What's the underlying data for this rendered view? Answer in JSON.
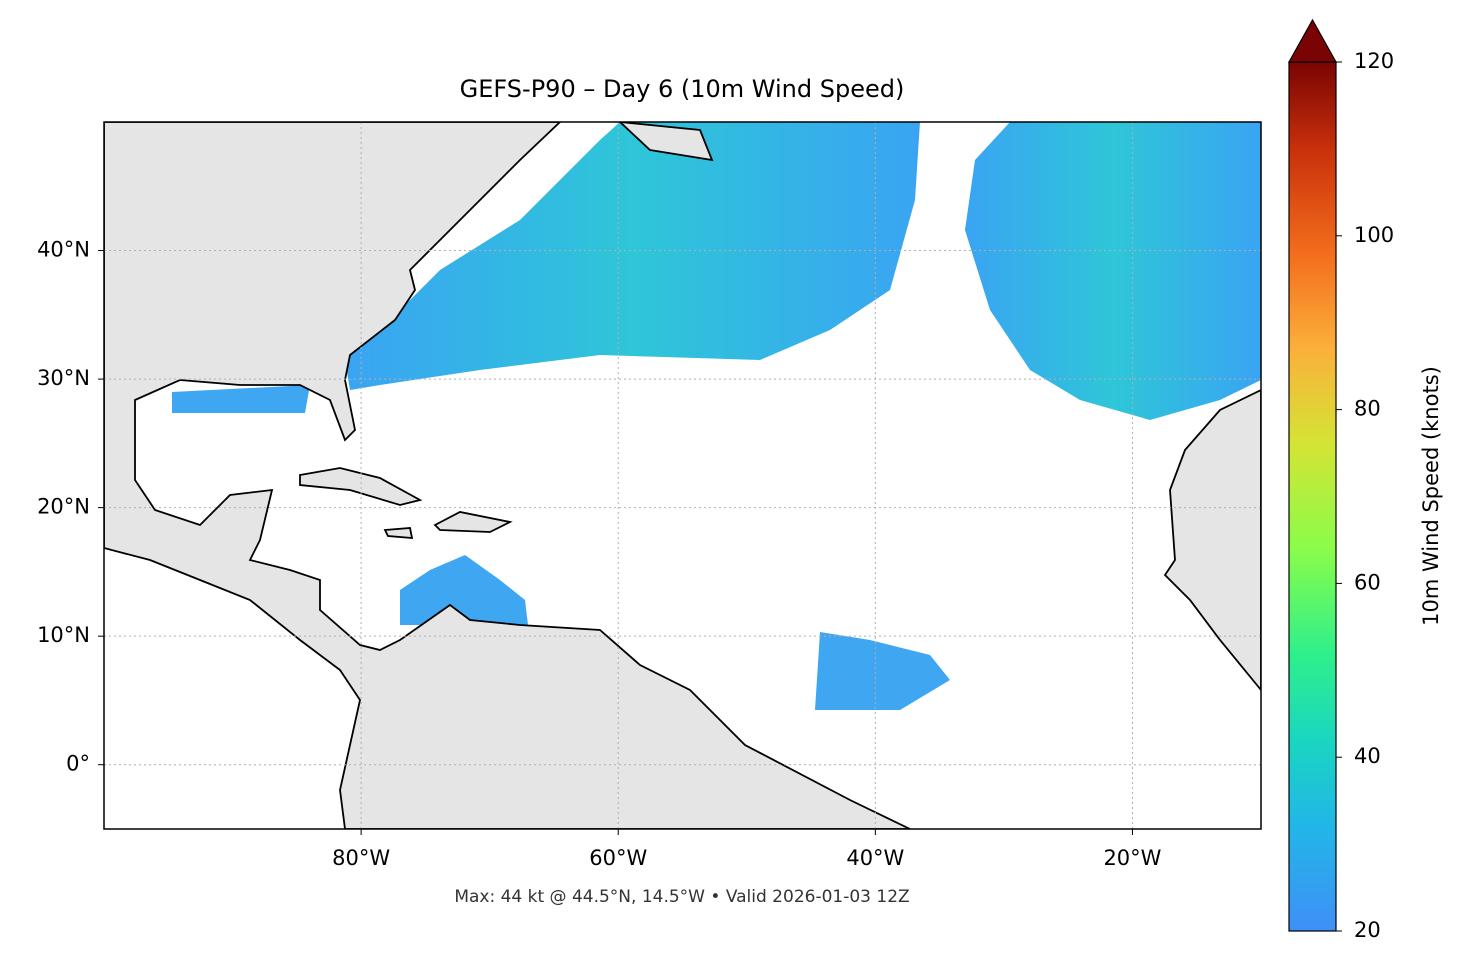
{
  "chart_data": {
    "type": "map",
    "title": "GEFS-P90 – Day 6 (10m Wind Speed)",
    "footnote": "Max: 44 kt @ 44.5°N, 14.5°W • Valid 2026-01-03 12Z",
    "xlim": [
      -100,
      -10
    ],
    "ylim": [
      -5,
      50
    ],
    "xticks": [
      {
        "value": -80,
        "label": "80°W"
      },
      {
        "value": -60,
        "label": "60°W"
      },
      {
        "value": -40,
        "label": "40°W"
      },
      {
        "value": -20,
        "label": "20°W"
      }
    ],
    "yticks": [
      {
        "value": 0,
        "label": "0°"
      },
      {
        "value": 10,
        "label": "10°N"
      },
      {
        "value": 20,
        "label": "20°N"
      },
      {
        "value": 30,
        "label": "30°N"
      },
      {
        "value": 40,
        "label": "40°N"
      }
    ],
    "grid": true,
    "colorbar": {
      "label": "10m Wind Speed (knots)",
      "lim": [
        20,
        120
      ],
      "ticks": [
        20,
        40,
        60,
        80,
        100,
        120
      ]
    }
  }
}
